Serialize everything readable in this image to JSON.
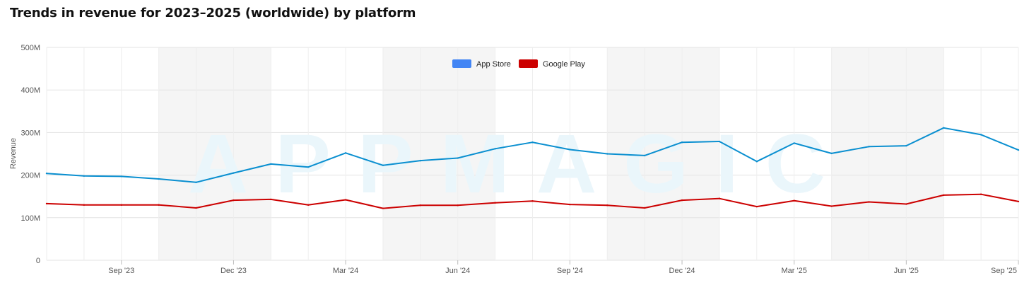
{
  "title": "Trends in revenue for 2023–2025 (worldwide) by platform",
  "watermark": "APPMAGIC",
  "colors": {
    "app_store": "#0a8fd0",
    "app_store_legend": "#4285f4",
    "google_play": "#cc0000",
    "band": "#f5f5f5",
    "grid": "#e3e3e3",
    "watermark": "#eaf6fb"
  },
  "chart_data": {
    "type": "line",
    "ylabel": "Revenue",
    "ylim": [
      0,
      500
    ],
    "y_ticks": [
      {
        "value": 0,
        "label": "0"
      },
      {
        "value": 100,
        "label": "100M"
      },
      {
        "value": 200,
        "label": "200M"
      },
      {
        "value": 300,
        "label": "300M"
      },
      {
        "value": 400,
        "label": "400M"
      },
      {
        "value": 500,
        "label": "500M"
      }
    ],
    "x": [
      "Jul '23",
      "Aug '23",
      "Sep '23",
      "Oct '23",
      "Nov '23",
      "Dec '23",
      "Jan '24",
      "Feb '24",
      "Mar '24",
      "Apr '24",
      "May '24",
      "Jun '24",
      "Jul '24",
      "Aug '24",
      "Sep '24",
      "Oct '24",
      "Nov '24",
      "Dec '24",
      "Jan '25",
      "Feb '25",
      "Mar '25",
      "Apr '25",
      "May '25",
      "Jun '25",
      "Jul '25",
      "Aug '25",
      "Sep '25"
    ],
    "x_tick_labels": [
      "Sep '23",
      "Dec '23",
      "Mar '24",
      "Jun '24",
      "Sep '24",
      "Dec '24",
      "Mar '25",
      "Jun '25",
      "Sep '25"
    ],
    "legend_position": "top-center",
    "grid": true,
    "series": [
      {
        "name": "App Store",
        "values": [
          204,
          198,
          197,
          191,
          183,
          205,
          226,
          219,
          252,
          223,
          234,
          240,
          262,
          277,
          260,
          250,
          246,
          277,
          279,
          232,
          275,
          251,
          267,
          269,
          311,
          295,
          259
        ]
      },
      {
        "name": "Google Play",
        "values": [
          133,
          130,
          130,
          130,
          123,
          141,
          143,
          130,
          142,
          122,
          129,
          129,
          135,
          139,
          131,
          129,
          123,
          141,
          145,
          126,
          140,
          127,
          137,
          132,
          153,
          155,
          138
        ]
      }
    ]
  }
}
